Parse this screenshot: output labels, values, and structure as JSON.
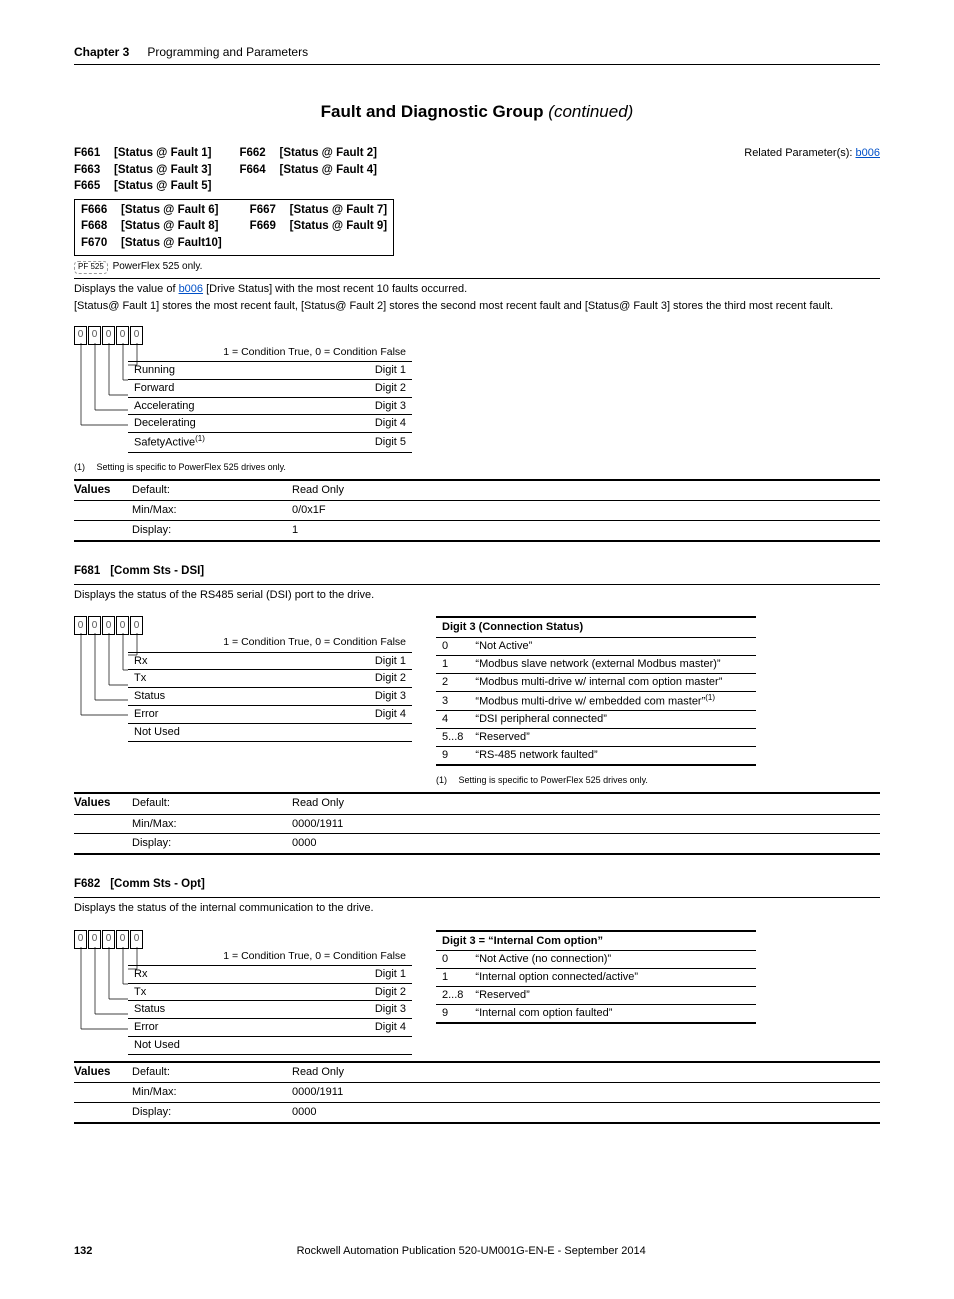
{
  "chapter": {
    "label": "Chapter 3",
    "title": "Programming and Parameters"
  },
  "section_title": {
    "main": "Fault and Diagnostic Group",
    "suffix": "(continued)"
  },
  "related": {
    "prefix": "Related Parameter(s): ",
    "link": "b006"
  },
  "f661_block": {
    "col1": [
      {
        "code": "F661",
        "name": "[Status @ Fault 1]"
      },
      {
        "code": "F663",
        "name": "[Status @ Fault 3]"
      },
      {
        "code": "F665",
        "name": "[Status @ Fault 5]"
      }
    ],
    "col2": [
      {
        "code": "F662",
        "name": "[Status @ Fault 2]"
      },
      {
        "code": "F664",
        "name": "[Status @ Fault 4]"
      }
    ],
    "boxed_col1": [
      {
        "code": "F666",
        "name": "[Status @ Fault 6]"
      },
      {
        "code": "F668",
        "name": "[Status @ Fault 8]"
      },
      {
        "code": "F670",
        "name": "[Status @ Fault10]"
      }
    ],
    "boxed_col2": [
      {
        "code": "F667",
        "name": "[Status @ Fault 7]"
      },
      {
        "code": "F669",
        "name": "[Status @ Fault 9]"
      }
    ],
    "pf525_badge": "PF 525",
    "pf525_text": "PowerFlex 525 only.",
    "desc1_pre": "Displays the value of ",
    "desc1_link": "b006",
    "desc1_post": " [Drive Status] with the most recent 10 faults occurred.",
    "desc2": "[Status@ Fault 1] stores the most recent fault, [Status@ Fault 2] stores the second most recent fault and [Status@ Fault 3] stores the third most recent fault.",
    "digits": [
      "0",
      "0",
      "0",
      "0",
      "0"
    ],
    "cond_note": "1 = Condition True, 0 = Condition False",
    "bits": [
      {
        "label": "Running",
        "digit": "Digit 1"
      },
      {
        "label": "Forward",
        "digit": "Digit 2"
      },
      {
        "label": "Accelerating",
        "digit": "Digit 3"
      },
      {
        "label": "Decelerating",
        "digit": "Digit 4"
      },
      {
        "label": "SafetyActive",
        "sup": "(1)",
        "digit": "Digit 5"
      }
    ],
    "footnote": {
      "num": "(1)",
      "text": "Setting is specific to PowerFlex 525 drives only."
    },
    "values": {
      "head": "Values",
      "rows": [
        {
          "k": "Default:",
          "v": "Read Only"
        },
        {
          "k": "Min/Max:",
          "v": "0/0x1F"
        },
        {
          "k": "Display:",
          "v": "1"
        }
      ]
    }
  },
  "f681_block": {
    "code": "F681",
    "name": "[Comm Sts - DSI]",
    "desc": "Displays the status of the RS485 serial (DSI) port to the drive.",
    "digits": [
      "0",
      "0",
      "0",
      "0",
      "0"
    ],
    "cond_note": "1 = Condition True, 0 = Condition False",
    "bits": [
      {
        "label": "Rx",
        "digit": "Digit 1"
      },
      {
        "label": "Tx",
        "digit": "Digit 2"
      },
      {
        "label": "Status",
        "digit": "Digit 3"
      },
      {
        "label": "Error",
        "digit": "Digit 4"
      },
      {
        "label": "Not Used",
        "digit": ""
      }
    ],
    "status_header": "Digit 3 (Connection Status)",
    "status_rows": [
      {
        "n": "0",
        "t": "“Not Active”"
      },
      {
        "n": "1",
        "t": "“Modbus slave network (external Modbus master)”"
      },
      {
        "n": "2",
        "t": "“Modbus multi-drive w/ internal com option master”"
      },
      {
        "n": "3",
        "t": "“Modbus multi-drive w/ embedded com master”",
        "sup": "(1)"
      },
      {
        "n": "4",
        "t": "“DSI peripheral connected”"
      },
      {
        "n": "5...8",
        "t": "“Reserved”"
      },
      {
        "n": "9",
        "t": "“RS-485 network faulted”"
      }
    ],
    "footnote": {
      "num": "(1)",
      "text": "Setting is specific to PowerFlex 525 drives only."
    },
    "values": {
      "head": "Values",
      "rows": [
        {
          "k": "Default:",
          "v": "Read Only"
        },
        {
          "k": "Min/Max:",
          "v": "0000/1911"
        },
        {
          "k": "Display:",
          "v": "0000"
        }
      ]
    }
  },
  "f682_block": {
    "code": "F682",
    "name": "[Comm Sts - Opt]",
    "desc": "Displays the status of the internal communication to the drive.",
    "digits": [
      "0",
      "0",
      "0",
      "0",
      "0"
    ],
    "cond_note": "1 = Condition True, 0 = Condition False",
    "bits": [
      {
        "label": "Rx",
        "digit": "Digit 1"
      },
      {
        "label": "Tx",
        "digit": "Digit 2"
      },
      {
        "label": "Status",
        "digit": "Digit 3"
      },
      {
        "label": "Error",
        "digit": "Digit 4"
      },
      {
        "label": "Not Used",
        "digit": ""
      }
    ],
    "status_header": "Digit 3 = “Internal Com option”",
    "status_rows": [
      {
        "n": "0",
        "t": "“Not Active (no connection)”"
      },
      {
        "n": "1",
        "t": "“Internal option connected/active”"
      },
      {
        "n": "2...8",
        "t": "“Reserved”"
      },
      {
        "n": "9",
        "t": "“Internal com option faulted”"
      }
    ],
    "values": {
      "head": "Values",
      "rows": [
        {
          "k": "Default:",
          "v": "Read Only"
        },
        {
          "k": "Min/Max:",
          "v": "0000/1911"
        },
        {
          "k": "Display:",
          "v": "0000"
        }
      ]
    }
  },
  "footer": {
    "page": "132",
    "pub": "Rockwell Automation Publication 520-UM001G-EN-E - September 2014"
  }
}
